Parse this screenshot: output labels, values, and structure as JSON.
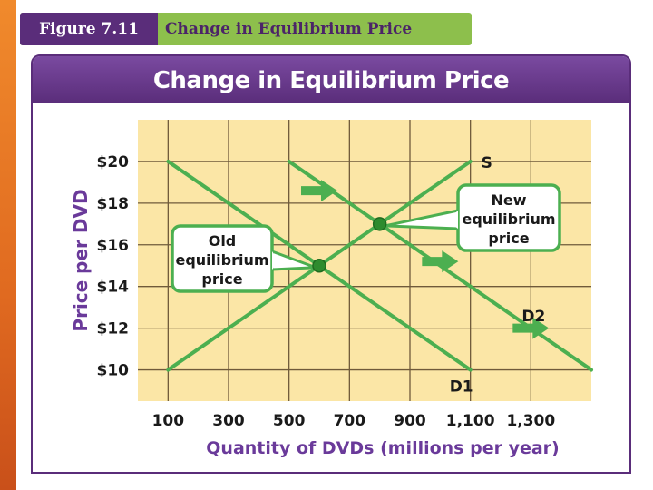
{
  "figure": {
    "label": "Figure 7.11",
    "title": "Change in Equilibrium Price"
  },
  "colors": {
    "accent_purple": "#5a2d7a",
    "header_green": "#8dbf4c",
    "plot_bg": "#fbe6a6",
    "grid": "#6f5a3a",
    "line_green": "#4caf50",
    "dot_green": "#2e8b2e",
    "axis_text": "#1a1a1a",
    "label_purple": "#6a3a9a"
  },
  "chart_data": {
    "type": "line",
    "title": "Change in Equilibrium Price",
    "xlabel": "Quantity of DVDs (millions per year)",
    "ylabel": "Price per DVD",
    "x_ticks": [
      100,
      300,
      500,
      700,
      900,
      1100,
      1300
    ],
    "x_tick_labels": [
      "100",
      "300",
      "500",
      "700",
      "900",
      "1,100",
      "1,300"
    ],
    "y_ticks": [
      10,
      12,
      14,
      16,
      18,
      20
    ],
    "y_tick_labels": [
      "$10",
      "$12",
      "$14",
      "$16",
      "$18",
      "$20"
    ],
    "xlim": [
      0,
      1500
    ],
    "ylim": [
      8.5,
      22
    ],
    "series": [
      {
        "name": "S",
        "points": [
          [
            100,
            10
          ],
          [
            1100,
            20
          ]
        ]
      },
      {
        "name": "D1",
        "points": [
          [
            100,
            20
          ],
          [
            1100,
            10
          ]
        ]
      },
      {
        "name": "D2",
        "points": [
          [
            500,
            20
          ],
          [
            1500,
            10
          ]
        ]
      }
    ],
    "equilibria": [
      {
        "name": "Old equilibrium price",
        "x": 600,
        "y": 15
      },
      {
        "name": "New equilibrium price",
        "x": 800,
        "y": 17
      }
    ],
    "callouts": {
      "old": [
        "Old",
        "equilibrium",
        "price"
      ],
      "new": [
        "New",
        "equilibrium",
        "price"
      ]
    },
    "arrows": [
      {
        "x": 600,
        "y": 18.6
      },
      {
        "x": 1000,
        "y": 15.2
      },
      {
        "x": 1300,
        "y": 12
      }
    ]
  }
}
